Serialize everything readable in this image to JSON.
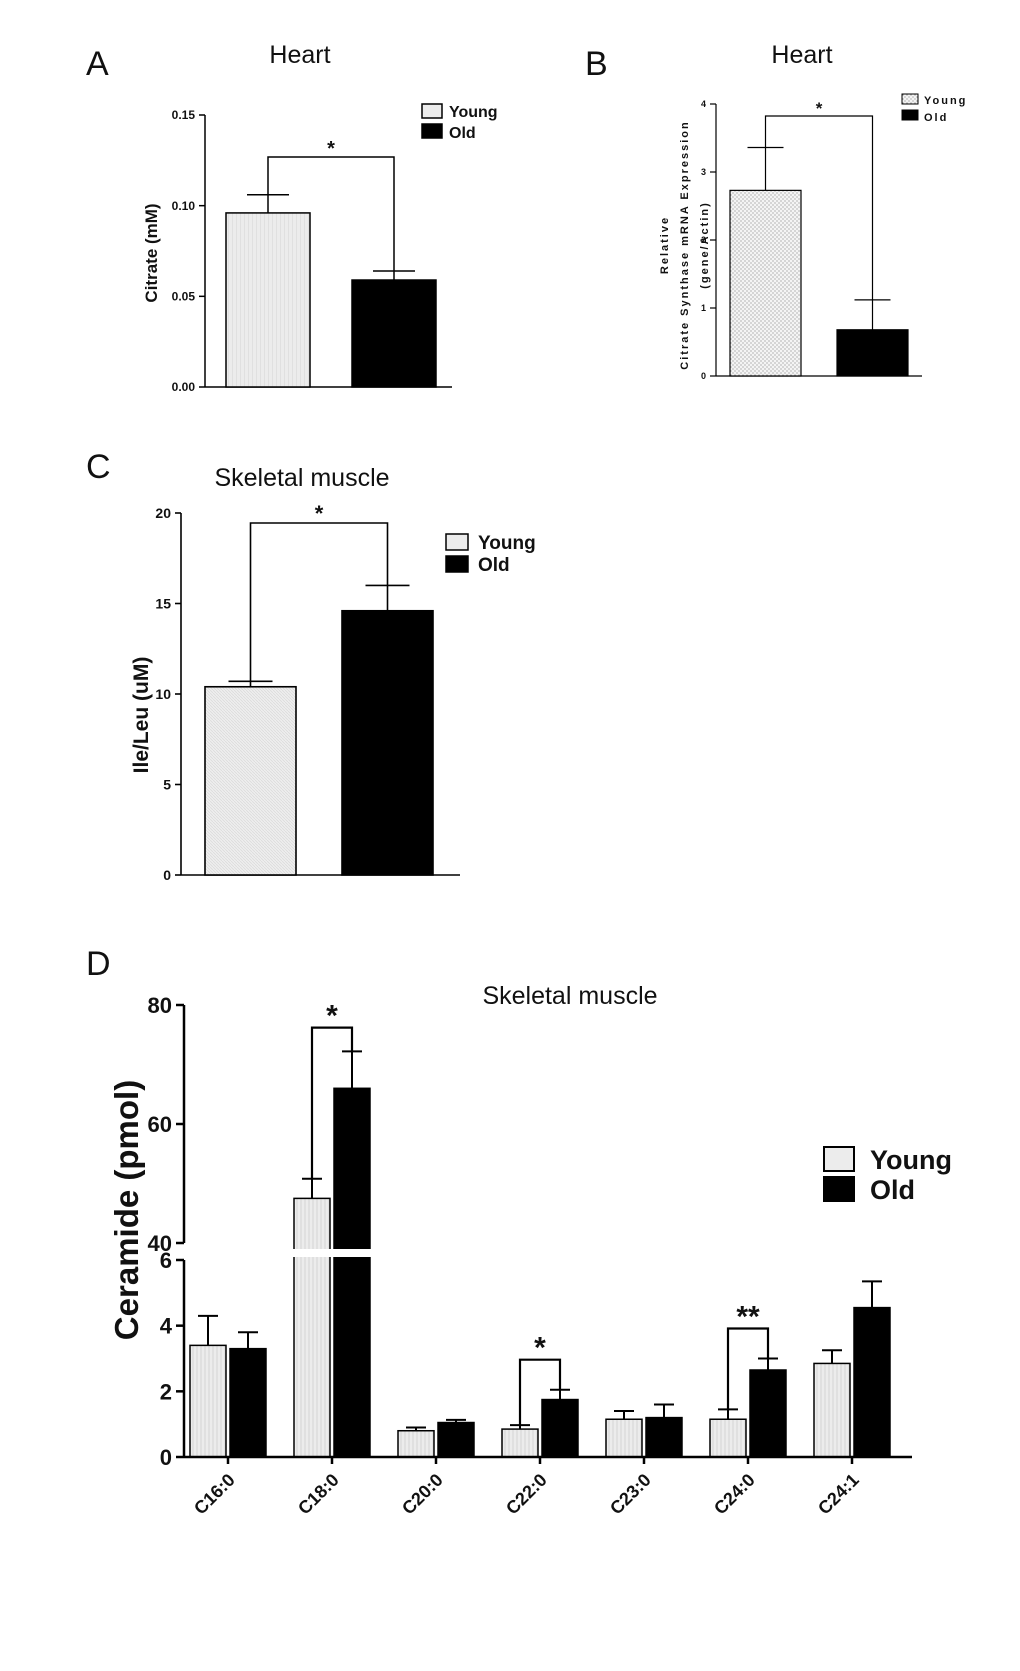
{
  "panels": [
    {
      "letter": "A"
    },
    {
      "letter": "B"
    },
    {
      "letter": "C"
    },
    {
      "letter": "D"
    }
  ],
  "chart_data": [
    {
      "id": "A",
      "type": "bar",
      "title": "Heart",
      "ylabel": "Citrate (mM)",
      "ylim": [
        0,
        0.15
      ],
      "yticks": [
        0,
        0.05,
        0.1,
        0.15
      ],
      "ytick_labels": [
        "0.00",
        "0.05",
        "0.10",
        "0.15"
      ],
      "categories": [
        "Young",
        "Old"
      ],
      "series": [
        {
          "name": "Citrate",
          "values": [
            0.096,
            0.059
          ],
          "errors": [
            0.01,
            0.005
          ]
        }
      ],
      "fills": [
        "#ececec",
        "#000000"
      ],
      "legend": [
        "Young",
        "Old"
      ],
      "legend_position": "top-right",
      "significance": [
        {
          "pair": [
            0,
            1
          ],
          "label": "*"
        }
      ]
    },
    {
      "id": "B",
      "type": "bar",
      "title": "Heart",
      "ylabel_lines": [
        "Relative",
        "Citrate Synthase mRNA Expression",
        "(gene/Actin)"
      ],
      "ylim": [
        0,
        4
      ],
      "yticks": [
        0,
        1,
        2,
        3,
        4
      ],
      "ytick_labels": [
        "0",
        "1",
        "2",
        "3",
        "4"
      ],
      "categories": [
        "Young",
        "Old"
      ],
      "series": [
        {
          "name": "Citrate Synthase",
          "values": [
            2.73,
            0.68
          ],
          "errors": [
            0.63,
            0.44
          ]
        }
      ],
      "fills": [
        "#efefef",
        "#000000"
      ],
      "legend": [
        "Young",
        "Old"
      ],
      "legend_position": "top-right",
      "significance": [
        {
          "pair": [
            0,
            1
          ],
          "label": "*"
        }
      ]
    },
    {
      "id": "C",
      "type": "bar",
      "title": "Skeletal muscle",
      "ylabel": "Ile/Leu (uM)",
      "ylim": [
        0,
        20
      ],
      "yticks": [
        0,
        5,
        10,
        15,
        20
      ],
      "ytick_labels": [
        "0",
        "5",
        "10",
        "15",
        "20"
      ],
      "categories": [
        "Young",
        "Old"
      ],
      "series": [
        {
          "name": "Ile/Leu",
          "values": [
            10.4,
            14.6
          ],
          "errors": [
            0.3,
            1.4
          ]
        }
      ],
      "fills": [
        "#ececec",
        "#000000"
      ],
      "legend": [
        "Young",
        "Old"
      ],
      "legend_position": "top-right",
      "significance": [
        {
          "pair": [
            0,
            1
          ],
          "label": "*"
        }
      ]
    },
    {
      "id": "D",
      "type": "bar",
      "title": "Skeletal muscle",
      "ylabel": "Ceramide (pmol)",
      "ylim": [
        0,
        80
      ],
      "axis_break": [
        6,
        40
      ],
      "yticks": [
        0,
        2,
        4,
        6,
        40,
        60,
        80
      ],
      "ytick_labels": [
        "0",
        "2",
        "4",
        "6",
        "40",
        "60",
        "80"
      ],
      "categories": [
        "C16:0",
        "C18:0",
        "C20:0",
        "C22:0",
        "C23:0",
        "C24:0",
        "C24:1"
      ],
      "series": [
        {
          "name": "Young",
          "values": [
            3.4,
            47.5,
            0.8,
            0.85,
            1.15,
            1.15,
            2.85
          ],
          "errors": [
            0.9,
            3.3,
            0.1,
            0.12,
            0.25,
            0.3,
            0.4
          ]
        },
        {
          "name": "Old",
          "values": [
            3.3,
            66.0,
            1.05,
            1.75,
            1.2,
            2.65,
            4.55
          ],
          "errors": [
            0.5,
            6.2,
            0.08,
            0.3,
            0.4,
            0.35,
            0.8
          ]
        }
      ],
      "fills": [
        "#ececec",
        "#000000"
      ],
      "legend": [
        "Young",
        "Old"
      ],
      "legend_position": "top-right",
      "significance": [
        {
          "category": "C18:0",
          "label": "*"
        },
        {
          "category": "C22:0",
          "label": "*"
        },
        {
          "category": "C24:0",
          "label": "**"
        }
      ]
    }
  ]
}
